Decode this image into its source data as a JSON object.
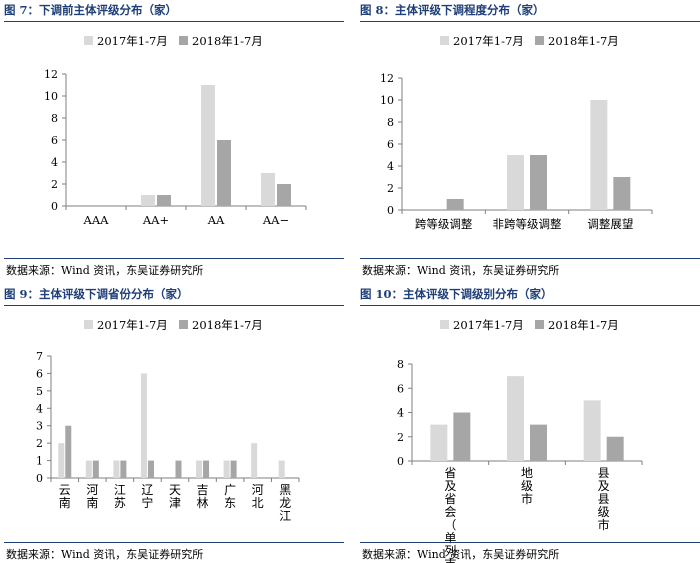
{
  "colors": {
    "series_2017": "#d9d9d9",
    "series_2018": "#a6a6a6",
    "title": "#1f3f78",
    "axis": "#7f7f7f"
  },
  "source_text": "数据来源：Wind 资讯，东吴证券研究所",
  "panels": [
    {
      "title": "图 7：下调前主体评级分布（家）"
    },
    {
      "title": "图 8：主体评级下调程度分布（家）"
    },
    {
      "title": "图 9：主体评级下调省份分布（家）"
    },
    {
      "title": "图 10：主体评级下调级别分布（家）"
    }
  ],
  "chart_data": [
    {
      "type": "bar",
      "title": "图 7：下调前主体评级分布（家）",
      "categories": [
        "AAA",
        "AA+",
        "AA",
        "AA−"
      ],
      "series": [
        {
          "name": "2017年1-7月",
          "values": [
            0,
            1,
            11,
            3
          ]
        },
        {
          "name": "2018年1-7月",
          "values": [
            0,
            1,
            6,
            2
          ]
        }
      ],
      "ylim": [
        0,
        12
      ],
      "yticks": [
        0,
        2,
        4,
        6,
        8,
        10,
        12
      ],
      "legend": "top-center",
      "grid": false
    },
    {
      "type": "bar",
      "title": "图 8：主体评级下调程度分布（家）",
      "categories": [
        "跨等级调整",
        "非跨等级调整",
        "调整展望"
      ],
      "series": [
        {
          "name": "2017年1-7月",
          "values": [
            0,
            5,
            10
          ]
        },
        {
          "name": "2018年1-7月",
          "values": [
            1,
            5,
            3
          ]
        }
      ],
      "ylim": [
        0,
        12
      ],
      "yticks": [
        0,
        2,
        4,
        6,
        8,
        10,
        12
      ],
      "legend": "top-center",
      "grid": false
    },
    {
      "type": "bar",
      "title": "图 9：主体评级下调省份分布（家）",
      "categories": [
        "云南",
        "河南",
        "江苏",
        "辽宁",
        "天津",
        "吉林",
        "广东",
        "河北",
        "黑龙江"
      ],
      "series": [
        {
          "name": "2017年1-7月",
          "values": [
            2,
            1,
            1,
            6,
            0,
            1,
            1,
            2,
            1
          ]
        },
        {
          "name": "2018年1-7月",
          "values": [
            3,
            1,
            1,
            1,
            1,
            1,
            1,
            0,
            0
          ]
        }
      ],
      "ylim": [
        0,
        7
      ],
      "yticks": [
        0,
        1,
        2,
        3,
        4,
        5,
        6,
        7
      ],
      "legend": "top-center",
      "grid": false
    },
    {
      "type": "bar",
      "title": "图 10：主体评级下调级别分布（家）",
      "categories": [
        "省及省会（单列市）",
        "地级市",
        "县及县级市"
      ],
      "series": [
        {
          "name": "2017年1-7月",
          "values": [
            3,
            7,
            5
          ]
        },
        {
          "name": "2018年1-7月",
          "values": [
            4,
            3,
            2
          ]
        }
      ],
      "ylim": [
        0,
        8
      ],
      "yticks": [
        0,
        2,
        4,
        6,
        8
      ],
      "legend": "top-center",
      "grid": false
    }
  ]
}
